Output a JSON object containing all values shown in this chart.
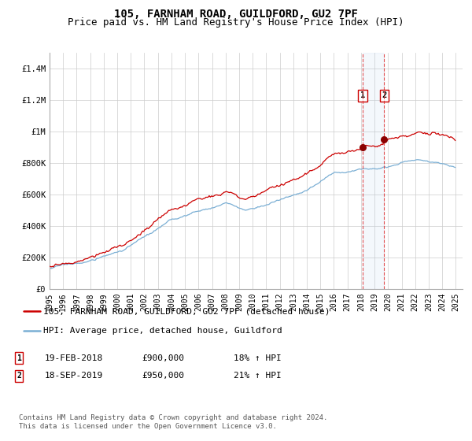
{
  "title": "105, FARNHAM ROAD, GUILDFORD, GU2 7PF",
  "subtitle": "Price paid vs. HM Land Registry's House Price Index (HPI)",
  "ylim": [
    0,
    1500000
  ],
  "yticks": [
    0,
    200000,
    400000,
    600000,
    800000,
    1000000,
    1200000,
    1400000
  ],
  "ytick_labels": [
    "£0",
    "£200K",
    "£400K",
    "£600K",
    "£800K",
    "£1M",
    "£1.2M",
    "£1.4M"
  ],
  "hpi_color": "#7bafd4",
  "price_color": "#cc0000",
  "marker_color": "#8b0000",
  "grid_color": "#cccccc",
  "background_color": "#ffffff",
  "legend_label_price": "105, FARNHAM ROAD, GUILDFORD, GU2 7PF (detached house)",
  "legend_label_hpi": "HPI: Average price, detached house, Guildford",
  "annotation1_label": "1",
  "annotation1_date": "19-FEB-2018",
  "annotation1_price": "£900,000",
  "annotation1_pct": "18% ↑ HPI",
  "annotation1_year": 2018.12,
  "annotation1_value": 900000,
  "annotation2_label": "2",
  "annotation2_date": "18-SEP-2019",
  "annotation2_price": "£950,000",
  "annotation2_pct": "21% ↑ HPI",
  "annotation2_year": 2019.71,
  "annotation2_value": 950000,
  "footnote": "Contains HM Land Registry data © Crown copyright and database right 2024.\nThis data is licensed under the Open Government Licence v3.0.",
  "title_fontsize": 10,
  "subtitle_fontsize": 9,
  "tick_fontsize": 7.5,
  "legend_fontsize": 8,
  "footnote_fontsize": 6.5,
  "annot_fontsize": 8
}
